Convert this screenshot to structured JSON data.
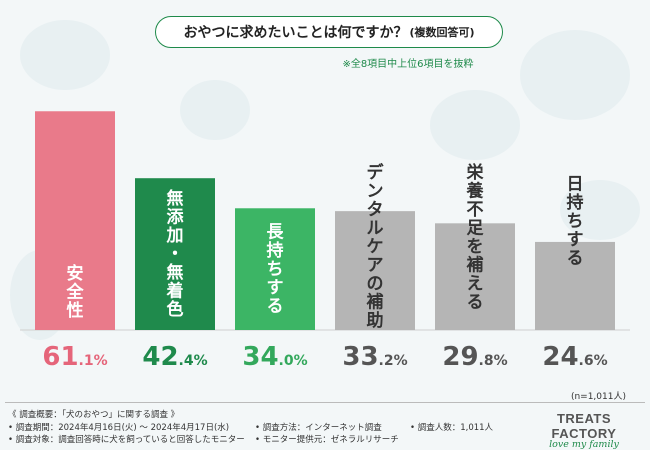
{
  "header": {
    "title_main": "おやつに求めたいことは何ですか？",
    "title_sub": "(複数回答可)",
    "note": "※全8項目中上位6項目を抜粋"
  },
  "chart_data": {
    "type": "bar",
    "title": "おやつに求めたいことは何ですか？(複数回答可)",
    "categories": [
      "安全性",
      "無添加・無着色",
      "長持ちする",
      "デンタルケアの補助",
      "栄養不足を補える",
      "日持ちする"
    ],
    "values": [
      61.1,
      42.4,
      34.0,
      33.2,
      29.8,
      24.6
    ],
    "value_labels": [
      {
        "int": "61",
        "dec": ".1%"
      },
      {
        "int": "42",
        "dec": ".4%"
      },
      {
        "int": "34",
        "dec": ".0%"
      },
      {
        "int": "33",
        "dec": ".2%"
      },
      {
        "int": "29",
        "dec": ".8%"
      },
      {
        "int": "24",
        "dec": ".6%"
      }
    ],
    "bar_colors": [
      "#e97a8a",
      "#1f8a4c",
      "#3cb565",
      "#b5b5b5",
      "#b5b5b5",
      "#b5b5b5"
    ],
    "value_colors": [
      "#e5657a",
      "#1f8a4c",
      "#33a85c",
      "#555555",
      "#555555",
      "#555555"
    ],
    "ylim": [
      0,
      65
    ],
    "unit": "%",
    "n_label": "(n=1,011人)"
  },
  "footer": {
    "overview": "《 調査概要：「犬のおやつ」に関する調査 》",
    "period": "• 調査期間：2024年4月16日(火) 〜 2024年4月17日(水)",
    "target": "• 調査対象：調査回答時に犬を飼っていると回答したモニター",
    "method": "• 調査方法：インターネット調査",
    "provider": "• モニター提供元：ゼネラルリサーチ",
    "count": "• 調査人数：1,011人"
  },
  "brand": {
    "name": "TREATS FACTORY",
    "tagline": "love my family"
  }
}
